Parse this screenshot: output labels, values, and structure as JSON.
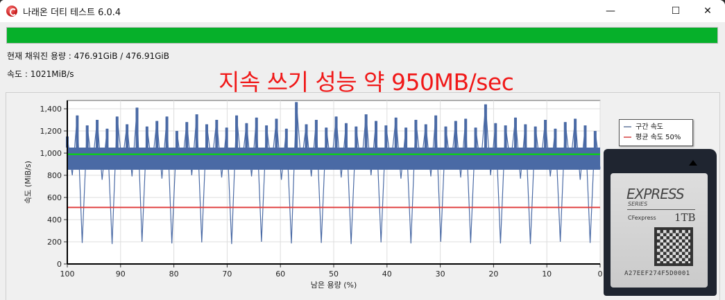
{
  "window": {
    "title": "나래온 더티 테스트 6.0.4",
    "minimize": "—",
    "maximize": "☐",
    "close": "✕"
  },
  "progress": {
    "percent": 100,
    "color": "#06b02a"
  },
  "info": {
    "capacity": "현재 채워진 용량 : 476.91GiB / 476.91GiB",
    "speed": "속도 : 1021MiB/s"
  },
  "annotation": "지속 쓰기 성능 약 950MB/sec",
  "legend": {
    "items": [
      {
        "label": "구간 속도",
        "color": "#4a6aa5"
      },
      {
        "label": "평균 속도 50%",
        "color": "#e05050"
      }
    ]
  },
  "card": {
    "brand": "EXPRESS",
    "series": "SERIES",
    "type": "CFexpress",
    "capacity": "1TB",
    "serial": "A27EEF274F5D0001"
  },
  "chart_data": {
    "type": "area",
    "xlabel": "남은 용량 (%)",
    "ylabel": "속도 (MiB/s)",
    "xlim": [
      100,
      0
    ],
    "ylim": [
      0,
      1475
    ],
    "xticks": [
      "100",
      "90",
      "80",
      "70",
      "60",
      "50",
      "40",
      "30",
      "20",
      "10",
      "0"
    ],
    "yticks": [
      "0",
      "200",
      "400",
      "600",
      "800",
      "1,000",
      "1,200",
      "1,400"
    ],
    "grid": true,
    "legend_position": "right",
    "reference_lines": [
      {
        "name": "green",
        "value": 990,
        "color": "#00e000"
      },
      {
        "name": "평균 속도 50%",
        "value": 510,
        "color": "#e04040"
      }
    ],
    "series": [
      {
        "name": "구간 속도",
        "color": "#4a6aa5",
        "values": [
          1150,
          800,
          1340,
          190,
          1250,
          870,
          1300,
          760,
          1220,
          180,
          1330,
          900,
          1260,
          790,
          1410,
          200,
          1240,
          880,
          1290,
          770,
          1330,
          185,
          1200,
          860,
          1280,
          800,
          1350,
          195,
          1260,
          900,
          1300,
          780,
          1230,
          180,
          1340,
          870,
          1270,
          790,
          1320,
          200,
          1250,
          880,
          1310,
          760,
          1220,
          185,
          1460,
          900,
          1260,
          790,
          1300,
          190,
          1230,
          870,
          1330,
          780,
          1270,
          180,
          1240,
          860,
          1350,
          800,
          1290,
          195,
          1250,
          900,
          1320,
          770,
          1230,
          185,
          1300,
          880,
          1260,
          790,
          1340,
          200,
          1240,
          860,
          1290,
          780,
          1310,
          190,
          1230,
          870,
          1440,
          800,
          1270,
          185,
          1250,
          900,
          1320,
          770,
          1260,
          180,
          1240,
          870,
          1300,
          790,
          1220,
          200,
          1280,
          880,
          1310,
          760,
          1250,
          190,
          1200,
          860
        ]
      }
    ]
  }
}
